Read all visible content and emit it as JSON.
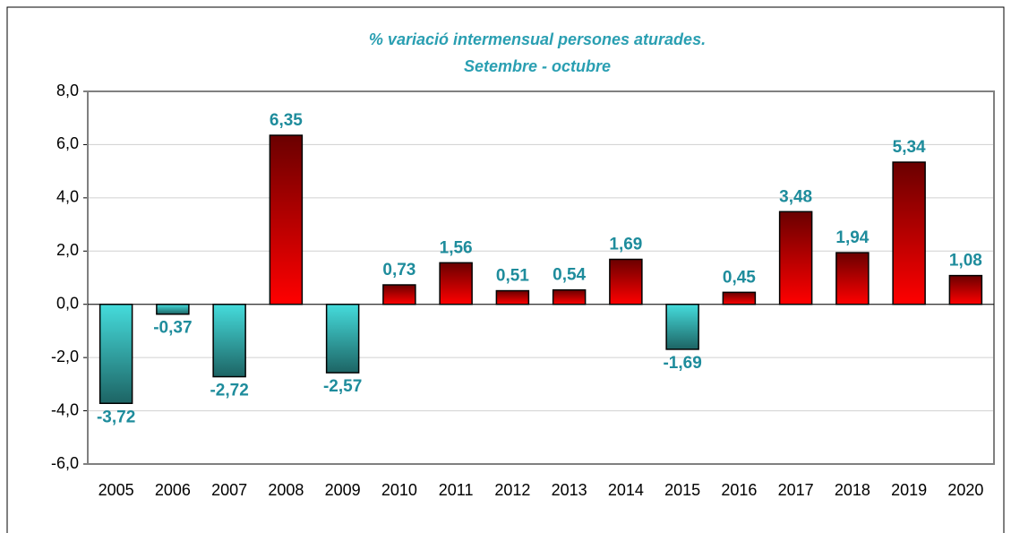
{
  "chart_data": {
    "type": "bar",
    "title": "% variació intermensual persones aturades.",
    "subtitle": "Setembre - octubre",
    "categories": [
      "2005",
      "2006",
      "2007",
      "2008",
      "2009",
      "2010",
      "2011",
      "2012",
      "2013",
      "2014",
      "2015",
      "2016",
      "2017",
      "2018",
      "2019",
      "2020"
    ],
    "values": [
      -3.72,
      -0.37,
      -2.72,
      6.35,
      -2.57,
      0.73,
      1.56,
      0.51,
      0.54,
      1.69,
      -1.69,
      0.45,
      3.48,
      1.94,
      5.34,
      1.08
    ],
    "value_labels": [
      "-3,72",
      "-0,37",
      "-2,72",
      "6,35",
      "-2,57",
      "0,73",
      "1,56",
      "0,51",
      "0,54",
      "1,69",
      "-1,69",
      "0,45",
      "3,48",
      "1,94",
      "5,34",
      "1,08"
    ],
    "color": [
      "#6a0000",
      "#ff0000"
    ],
    "negative_color": [
      "#45dcdc",
      "#1d6464"
    ],
    "ylim": [
      -6,
      8
    ],
    "yticks": [
      {
        "value": -6,
        "label": "-6,0"
      },
      {
        "value": -4,
        "label": "-4,0"
      },
      {
        "value": -2,
        "label": "-2,0"
      },
      {
        "value": 0,
        "label": "0,0"
      },
      {
        "value": 2,
        "label": "2,0"
      },
      {
        "value": 4,
        "label": "4,0"
      },
      {
        "value": 6,
        "label": "6,0"
      },
      {
        "value": 8,
        "label": "8,0"
      }
    ],
    "grid": true
  }
}
